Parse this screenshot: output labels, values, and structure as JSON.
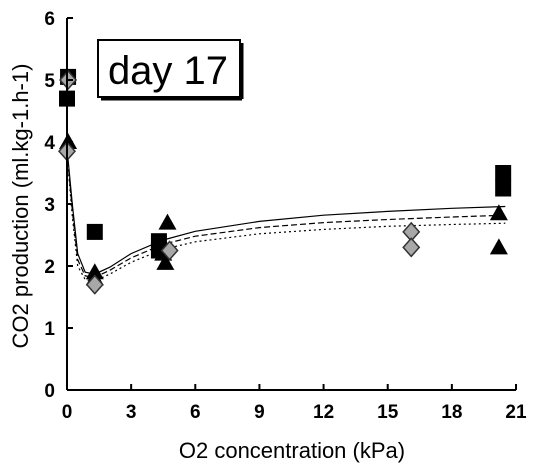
{
  "chart_data": {
    "type": "scatter",
    "title": "",
    "annotation": "day 17",
    "xlabel": "O2 concentration (kPa)",
    "ylabel": "CO2 production (ml.kg-1.h-1)",
    "xlim": [
      0,
      21
    ],
    "ylim": [
      0,
      6
    ],
    "xticks": [
      0,
      3,
      6,
      9,
      12,
      15,
      18,
      21
    ],
    "yticks": [
      0,
      1,
      2,
      3,
      4,
      5,
      6
    ],
    "grid": false,
    "legend": "none",
    "series": [
      {
        "marker": "square",
        "color": "#000000",
        "points": [
          [
            0.05,
            5.05
          ],
          [
            0.0,
            4.7
          ],
          [
            1.3,
            2.55
          ],
          [
            4.3,
            2.4
          ],
          [
            4.3,
            2.25
          ],
          [
            20.4,
            3.5
          ],
          [
            20.4,
            3.25
          ]
        ]
      },
      {
        "marker": "triangle",
        "color": "#000000",
        "points": [
          [
            0.05,
            4.0
          ],
          [
            1.3,
            1.9
          ],
          [
            1.3,
            1.8
          ],
          [
            4.7,
            2.7
          ],
          [
            4.6,
            2.05
          ],
          [
            4.5,
            2.2
          ],
          [
            20.2,
            2.85
          ],
          [
            20.2,
            2.3
          ]
        ]
      },
      {
        "marker": "diamond",
        "color": "#a8a8a8",
        "points": [
          [
            0.05,
            5.0
          ],
          [
            0.0,
            3.85
          ],
          [
            1.3,
            1.7
          ],
          [
            4.8,
            2.25
          ],
          [
            16.1,
            2.55
          ],
          [
            16.1,
            2.3
          ]
        ]
      }
    ],
    "fit_curves": [
      {
        "style": "solid",
        "points": [
          [
            0,
            3.9
          ],
          [
            0.25,
            3.0
          ],
          [
            0.5,
            2.2
          ],
          [
            0.85,
            1.9
          ],
          [
            1.3,
            1.87
          ],
          [
            2,
            1.98
          ],
          [
            3,
            2.2
          ],
          [
            4.5,
            2.42
          ],
          [
            6,
            2.56
          ],
          [
            9,
            2.72
          ],
          [
            12,
            2.82
          ],
          [
            15,
            2.88
          ],
          [
            18,
            2.93
          ],
          [
            20.5,
            2.96
          ]
        ]
      },
      {
        "style": "dashed",
        "points": [
          [
            0,
            3.85
          ],
          [
            0.25,
            2.9
          ],
          [
            0.5,
            2.1
          ],
          [
            0.85,
            1.84
          ],
          [
            1.3,
            1.82
          ],
          [
            2,
            1.93
          ],
          [
            3,
            2.13
          ],
          [
            4.5,
            2.35
          ],
          [
            6,
            2.48
          ],
          [
            9,
            2.62
          ],
          [
            12,
            2.7
          ],
          [
            15,
            2.75
          ],
          [
            18,
            2.79
          ],
          [
            20.5,
            2.82
          ]
        ]
      },
      {
        "style": "dotted",
        "points": [
          [
            0,
            3.8
          ],
          [
            0.25,
            2.8
          ],
          [
            0.5,
            2.0
          ],
          [
            0.85,
            1.78
          ],
          [
            1.3,
            1.76
          ],
          [
            2,
            1.87
          ],
          [
            3,
            2.06
          ],
          [
            4.5,
            2.27
          ],
          [
            6,
            2.39
          ],
          [
            9,
            2.52
          ],
          [
            12,
            2.59
          ],
          [
            15,
            2.64
          ],
          [
            18,
            2.67
          ],
          [
            20.5,
            2.69
          ]
        ]
      }
    ]
  }
}
